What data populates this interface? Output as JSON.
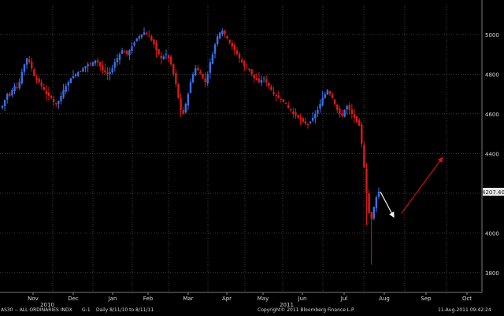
{
  "chart_data": {
    "type": "candlestick",
    "ticker": "AS30",
    "instrument": "ALL ORDINARIES INDX",
    "ylim": [
      3700,
      5150
    ],
    "yticks": [
      3800,
      4000,
      4200,
      4400,
      4600,
      4800,
      5000
    ],
    "last_value_label": "4207.40",
    "last_value": 4207.4,
    "x_month_labels": [
      "Nov",
      "Dec",
      "Jan",
      "Feb",
      "Mar",
      "Apr",
      "May",
      "Jun",
      "Jul",
      "Aug",
      "Sep",
      "Oct"
    ],
    "year_labels": [
      "2010",
      "2011"
    ],
    "series": [
      {
        "name": "close",
        "values": [
          4640,
          4670,
          4700,
          4690,
          4720,
          4740,
          4730,
          4760,
          4810,
          4850,
          4880,
          4860,
          4830,
          4790,
          4770,
          4760,
          4740,
          4720,
          4700,
          4690,
          4680,
          4660,
          4650,
          4665,
          4690,
          4720,
          4740,
          4760,
          4780,
          4790,
          4800,
          4810,
          4810,
          4830,
          4840,
          4850,
          4850,
          4860,
          4870,
          4860,
          4840,
          4820,
          4810,
          4800,
          4810,
          4830,
          4860,
          4880,
          4900,
          4920,
          4910,
          4900,
          4920,
          4940,
          4960,
          4980,
          4990,
          5000,
          5010,
          5000,
          4990,
          4970,
          4950,
          4920,
          4900,
          4880,
          4890,
          4900,
          4880,
          4850,
          4800,
          4750,
          4680,
          4620,
          4600,
          4650,
          4700,
          4760,
          4800,
          4830,
          4820,
          4800,
          4780,
          4760,
          4800,
          4860,
          4900,
          4950,
          4990,
          5010,
          5020,
          5000,
          4980,
          4960,
          4940,
          4920,
          4900,
          4880,
          4860,
          4840,
          4830,
          4820,
          4800,
          4780,
          4770,
          4760,
          4770,
          4780,
          4760,
          4740,
          4720,
          4700,
          4690,
          4680,
          4670,
          4660,
          4650,
          4630,
          4620,
          4600,
          4590,
          4580,
          4570,
          4560,
          4550,
          4545,
          4560,
          4580,
          4600,
          4620,
          4650,
          4680,
          4700,
          4720,
          4700,
          4680,
          4650,
          4620,
          4600,
          4590,
          4620,
          4640,
          4620,
          4600,
          4580,
          4560,
          4540,
          4450,
          4330,
          4200,
          4100,
          4070,
          4130,
          4180,
          4207.4
        ]
      },
      {
        "name": "forecast_arrow",
        "values": [
          4100,
          4380
        ]
      }
    ],
    "colors": {
      "up": "#3a6fe8",
      "down": "#e01818",
      "arrow_up": "#cc1010",
      "arrow_down": "#f2f2f2",
      "grid": "#4a4a4a",
      "axis_text": "#d8d8d8",
      "badge": "#e8e8e8"
    }
  },
  "footer": {
    "security": "AS30 -- ALL ORDINARIES INDX",
    "chart_code": "G-1",
    "period": "Daily  8/11/10 to 8/11/11",
    "copyright": "Copyright© 2011 Bloomberg Finance L.P.",
    "timestamp": "11-Aug-2011 09:42:24"
  }
}
